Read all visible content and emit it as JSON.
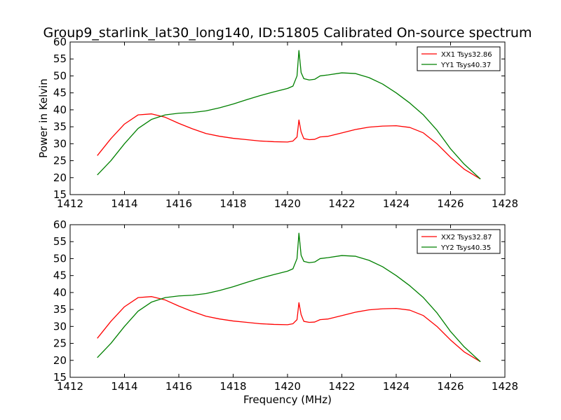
{
  "title": "Group9_starlink_lat30_long140, ID:51805 Calibrated On-source spectrum",
  "xlabel": "Frequency (MHz)",
  "chart_data": [
    {
      "type": "line",
      "ylabel": "Power in Kelvin",
      "xlim": [
        1412,
        1428
      ],
      "ylim": [
        15,
        60
      ],
      "xticks": [
        1412,
        1414,
        1416,
        1418,
        1420,
        1422,
        1424,
        1426,
        1428
      ],
      "yticks": [
        15,
        20,
        25,
        30,
        35,
        40,
        45,
        50,
        55,
        60
      ],
      "legend_position": "top-right",
      "grid": false,
      "series": [
        {
          "name": "XX1 Tsys32.86",
          "color": "#ff0000",
          "x": [
            1413.0,
            1413.5,
            1414.0,
            1414.5,
            1415.0,
            1415.5,
            1416.0,
            1416.5,
            1417.0,
            1417.5,
            1418.0,
            1418.5,
            1419.0,
            1419.5,
            1420.0,
            1420.2,
            1420.35,
            1420.42,
            1420.5,
            1420.6,
            1420.8,
            1421.0,
            1421.2,
            1421.5,
            1422.0,
            1422.5,
            1423.0,
            1423.5,
            1424.0,
            1424.5,
            1425.0,
            1425.5,
            1426.0,
            1426.5,
            1427.1
          ],
          "y": [
            26.5,
            31.5,
            35.8,
            38.5,
            38.8,
            37.8,
            36.0,
            34.4,
            33.0,
            32.2,
            31.6,
            31.2,
            30.8,
            30.6,
            30.5,
            30.8,
            32.0,
            37.0,
            33.5,
            31.5,
            31.2,
            31.3,
            32.0,
            32.2,
            33.2,
            34.2,
            34.9,
            35.2,
            35.3,
            34.8,
            33.2,
            30.0,
            26.0,
            22.5,
            19.6
          ]
        },
        {
          "name": "YY1 Tsys40.37",
          "color": "#008000",
          "x": [
            1413.0,
            1413.5,
            1414.0,
            1414.5,
            1415.0,
            1415.5,
            1416.0,
            1416.5,
            1417.0,
            1417.5,
            1418.0,
            1418.5,
            1419.0,
            1419.5,
            1420.0,
            1420.2,
            1420.35,
            1420.42,
            1420.5,
            1420.6,
            1420.8,
            1421.0,
            1421.2,
            1421.5,
            1422.0,
            1422.5,
            1423.0,
            1423.5,
            1424.0,
            1424.5,
            1425.0,
            1425.5,
            1426.0,
            1426.5,
            1427.1
          ],
          "y": [
            20.8,
            25.0,
            30.0,
            34.5,
            37.2,
            38.5,
            39.0,
            39.2,
            39.7,
            40.6,
            41.7,
            43.0,
            44.2,
            45.3,
            46.3,
            47.0,
            50.0,
            57.5,
            51.0,
            49.2,
            48.8,
            49.0,
            50.0,
            50.3,
            50.9,
            50.7,
            49.5,
            47.6,
            45.0,
            42.0,
            38.5,
            34.0,
            28.5,
            24.0,
            19.6
          ]
        }
      ]
    },
    {
      "type": "line",
      "ylabel": "",
      "xlim": [
        1412,
        1428
      ],
      "ylim": [
        15,
        60
      ],
      "xticks": [
        1412,
        1414,
        1416,
        1418,
        1420,
        1422,
        1424,
        1426,
        1428
      ],
      "yticks": [
        15,
        20,
        25,
        30,
        35,
        40,
        45,
        50,
        55,
        60
      ],
      "legend_position": "top-right",
      "grid": false,
      "series": [
        {
          "name": "XX2 Tsys32.87",
          "color": "#ff0000",
          "x": [
            1413.0,
            1413.5,
            1414.0,
            1414.5,
            1415.0,
            1415.5,
            1416.0,
            1416.5,
            1417.0,
            1417.5,
            1418.0,
            1418.5,
            1419.0,
            1419.5,
            1420.0,
            1420.2,
            1420.35,
            1420.42,
            1420.5,
            1420.6,
            1420.8,
            1421.0,
            1421.2,
            1421.5,
            1422.0,
            1422.5,
            1423.0,
            1423.5,
            1424.0,
            1424.5,
            1425.0,
            1425.5,
            1426.0,
            1426.5,
            1427.1
          ],
          "y": [
            26.5,
            31.5,
            35.8,
            38.5,
            38.8,
            37.8,
            36.0,
            34.4,
            33.0,
            32.2,
            31.6,
            31.2,
            30.8,
            30.6,
            30.5,
            30.8,
            32.0,
            37.0,
            33.5,
            31.5,
            31.2,
            31.3,
            32.0,
            32.2,
            33.2,
            34.2,
            34.9,
            35.2,
            35.3,
            34.8,
            33.2,
            30.0,
            26.0,
            22.5,
            19.6
          ]
        },
        {
          "name": "YY2 Tsys40.35",
          "color": "#008000",
          "x": [
            1413.0,
            1413.5,
            1414.0,
            1414.5,
            1415.0,
            1415.5,
            1416.0,
            1416.5,
            1417.0,
            1417.5,
            1418.0,
            1418.5,
            1419.0,
            1419.5,
            1420.0,
            1420.2,
            1420.35,
            1420.42,
            1420.5,
            1420.6,
            1420.8,
            1421.0,
            1421.2,
            1421.5,
            1422.0,
            1422.5,
            1423.0,
            1423.5,
            1424.0,
            1424.5,
            1425.0,
            1425.5,
            1426.0,
            1426.5,
            1427.1
          ],
          "y": [
            20.8,
            25.0,
            30.0,
            34.5,
            37.2,
            38.5,
            39.0,
            39.2,
            39.7,
            40.6,
            41.7,
            43.0,
            44.2,
            45.3,
            46.3,
            47.0,
            50.0,
            57.5,
            51.0,
            49.2,
            48.8,
            49.0,
            50.0,
            50.3,
            50.9,
            50.7,
            49.5,
            47.6,
            45.0,
            42.0,
            38.5,
            34.0,
            28.5,
            24.0,
            19.6
          ]
        }
      ]
    }
  ]
}
